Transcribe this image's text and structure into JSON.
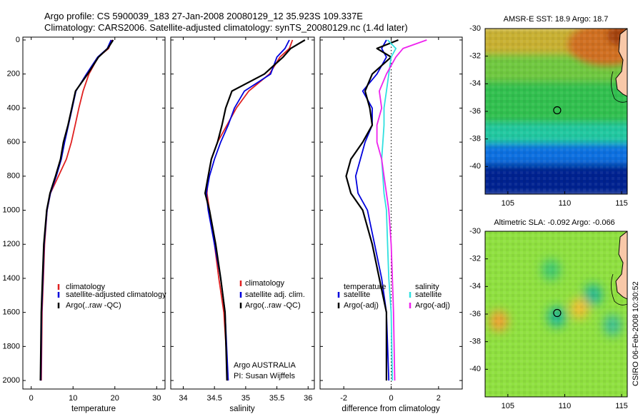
{
  "title_line1": "Argo profile: CS 5900039_183 27-Jan-2008 20080129_12 35.923S 109.337E",
  "title_line2": "Climatology: CARS2006. Satellite-adjusted climatology: synTS_20080129.nc (1.4d later)",
  "colors": {
    "climatology": "#e02020",
    "satellite": "#0000dd",
    "argo": "#000000",
    "sal_satellite": "#30e0e0",
    "sal_argo": "#ee22ee"
  },
  "chart_data": [
    {
      "type": "line",
      "xlabel": "temperature",
      "xlim": [
        -2,
        32
      ],
      "ylim": [
        0,
        2050
      ],
      "y_inverted": true,
      "xticks": [
        0,
        10,
        20,
        30
      ],
      "yticks": [
        0,
        200,
        400,
        600,
        800,
        1000,
        1200,
        1400,
        1600,
        1800,
        2000
      ],
      "legend": [
        "climatology",
        "satellite-adjusted climatology",
        "Argo(..raw -QC)"
      ],
      "legend_position": "lower-right",
      "series": [
        {
          "name": "climatology",
          "role": "climatology",
          "x": [
            19.3,
            18.5,
            16,
            13.8,
            12.4,
            11.4,
            10.5,
            9.6,
            8.4,
            6.5,
            4.6,
            3.8,
            3.2,
            2.9,
            2.6,
            2.4
          ],
          "y": [
            0,
            50,
            100,
            200,
            300,
            400,
            500,
            600,
            700,
            800,
            900,
            1000,
            1200,
            1400,
            1600,
            2000
          ]
        },
        {
          "name": "satellite-adjusted climatology",
          "role": "satellite",
          "x": [
            19.1,
            18.2,
            15.9,
            13.2,
            10.7,
            9.8,
            8.9,
            8,
            7.2,
            6,
            4.6,
            3.8,
            3.1,
            2.8,
            2.5,
            2.3
          ],
          "y": [
            0,
            50,
            100,
            200,
            300,
            400,
            500,
            600,
            700,
            800,
            900,
            1000,
            1200,
            1400,
            1600,
            2000
          ]
        },
        {
          "name": "Argo(..raw -QC)",
          "role": "argo",
          "x": [
            19.6,
            18.3,
            16.1,
            13.5,
            10.6,
            9.7,
            8.8,
            7.7,
            7,
            5.8,
            4.5,
            3.7,
            3,
            2.7,
            2.4,
            2.2
          ],
          "y": [
            0,
            50,
            100,
            200,
            300,
            400,
            500,
            600,
            700,
            800,
            900,
            1000,
            1200,
            1400,
            1600,
            2000
          ]
        }
      ]
    },
    {
      "type": "line",
      "xlabel": "salinity",
      "xlim": [
        33.8,
        36.1
      ],
      "ylim": [
        0,
        2050
      ],
      "y_inverted": true,
      "xticks": [
        34,
        34.5,
        35,
        35.5,
        36
      ],
      "yticks": [
        0,
        200,
        400,
        600,
        800,
        1000,
        1200,
        1400,
        1600,
        1800,
        2000
      ],
      "legend": [
        "climatology",
        "satellite adj. clim.",
        "Argo(..raw -QC)"
      ],
      "legend_position": "lower-right",
      "annotations": [
        "Argo AUSTRALIA",
        "PI: Susan Wijffels"
      ],
      "series": [
        {
          "name": "climatology",
          "role": "climatology",
          "x": [
            35.75,
            35.7,
            35.55,
            35.38,
            35.05,
            34.85,
            34.7,
            34.55,
            34.45,
            34.4,
            34.38,
            34.42,
            34.5,
            34.57,
            34.65,
            34.72
          ],
          "y": [
            0,
            50,
            100,
            200,
            300,
            400,
            500,
            600,
            700,
            800,
            900,
            1000,
            1200,
            1400,
            1600,
            2000
          ]
        },
        {
          "name": "satellite adj. clim.",
          "role": "satellite",
          "x": [
            35.7,
            35.63,
            35.5,
            35.4,
            34.98,
            34.82,
            34.72,
            34.6,
            34.5,
            34.42,
            34.37,
            34.4,
            34.5,
            34.6,
            34.67,
            34.72
          ],
          "y": [
            0,
            50,
            100,
            200,
            300,
            400,
            500,
            600,
            700,
            800,
            900,
            1000,
            1200,
            1400,
            1600,
            2000
          ]
        },
        {
          "name": "Argo(..raw -QC)",
          "role": "argo",
          "x": [
            35.95,
            35.72,
            35.6,
            35.3,
            34.78,
            34.68,
            34.62,
            34.55,
            34.45,
            34.4,
            34.35,
            34.42,
            34.52,
            34.6,
            34.67,
            34.7
          ],
          "y": [
            0,
            50,
            100,
            200,
            300,
            400,
            500,
            600,
            700,
            800,
            900,
            1000,
            1200,
            1400,
            1600,
            2000
          ]
        }
      ]
    },
    {
      "type": "line",
      "xlabel": "difference from climatology",
      "xlim": [
        -3,
        3
      ],
      "ylim": [
        0,
        2050
      ],
      "y_inverted": true,
      "xticks": [
        -2,
        0,
        2
      ],
      "yticks": [
        0,
        200,
        400,
        600,
        800,
        1000,
        1200,
        1400,
        1600,
        1800,
        2000
      ],
      "legend_left_title": "temperature",
      "legend_right_title": "salinity",
      "legend": [
        "satellite",
        "Argo(-adj)",
        "satellite",
        "Argo(-adj)"
      ],
      "legend_position": "lower-center",
      "series": [
        {
          "name": "satellite",
          "role": "satellite",
          "x": [
            -0.2,
            -0.4,
            -0.2,
            -0.6,
            -1.2,
            -0.8,
            -0.8,
            -1.1,
            -1.3,
            -1.5,
            -1.4,
            -1,
            -0.7,
            -0.4,
            -0.2,
            -0.1
          ],
          "y": [
            0,
            50,
            100,
            200,
            300,
            400,
            500,
            600,
            700,
            800,
            900,
            1000,
            1200,
            1400,
            1600,
            2000
          ]
        },
        {
          "name": "Argo(-adj)",
          "role": "argo",
          "x": [
            0.3,
            -0.6,
            0,
            -0.8,
            -1.1,
            -0.9,
            -0.8,
            -1.2,
            -1.7,
            -1.9,
            -1.7,
            -1.2,
            -0.8,
            -0.5,
            -0.2,
            -0.2
          ],
          "y": [
            0,
            50,
            100,
            200,
            300,
            400,
            500,
            600,
            700,
            800,
            900,
            1000,
            1200,
            1400,
            1600,
            2000
          ]
        },
        {
          "name": "satellite",
          "role": "sal_satellite",
          "x": [
            -0.15,
            0.2,
            0,
            -0.1,
            -0.2,
            -0.3,
            -0.3,
            -0.35,
            -0.4,
            -0.35,
            -0.3,
            -0.2,
            -0.15,
            -0.1,
            0,
            0.05
          ],
          "y": [
            0,
            50,
            100,
            200,
            300,
            400,
            500,
            600,
            700,
            800,
            900,
            1000,
            1200,
            1400,
            1600,
            2000
          ]
        },
        {
          "name": "Argo(-adj)",
          "role": "sal_argo",
          "x": [
            1.5,
            0.5,
            0.2,
            -0.2,
            -0.5,
            -0.4,
            -0.6,
            -0.6,
            -0.4,
            -0.3,
            -0.2,
            -0.1,
            0,
            0.05,
            0.1,
            0.15
          ],
          "y": [
            0,
            50,
            100,
            200,
            300,
            400,
            500,
            600,
            700,
            800,
            900,
            1000,
            1200,
            1400,
            1600,
            2000
          ]
        }
      ]
    },
    {
      "type": "heatmap",
      "title": "AMSR-E SST: 18.9 Argo: 18.7",
      "xlim": [
        103,
        115.5
      ],
      "ylim": [
        -42,
        -30
      ],
      "xticks": [
        105,
        110,
        115
      ],
      "yticks": [
        -30,
        -32,
        -34,
        -36,
        -38,
        -40
      ],
      "marker": {
        "lon": 109.337,
        "lat": -35.923
      },
      "color_bands": [
        {
          "lat_from": -30,
          "lat_to": -32,
          "color": "#c8b030"
        },
        {
          "lat_from": -32,
          "lat_to": -34,
          "color": "#70c840"
        },
        {
          "lat_from": -34,
          "lat_to": -37,
          "color": "#30c050"
        },
        {
          "lat_from": -37,
          "lat_to": -38.5,
          "color": "#20c8a0"
        },
        {
          "lat_from": -38.5,
          "lat_to": -40,
          "color": "#1070e0"
        },
        {
          "lat_from": -40,
          "lat_to": -42,
          "color": "#002090"
        }
      ]
    },
    {
      "type": "heatmap",
      "title": "Altimetric SLA: -0.092 Argo: -0.066",
      "xlim": [
        103,
        115.5
      ],
      "ylim": [
        -42,
        -30
      ],
      "xticks": [
        105,
        110,
        115
      ],
      "yticks": [
        -30,
        -32,
        -34,
        -36,
        -38,
        -40
      ],
      "marker": {
        "lon": 109.337,
        "lat": -35.923
      },
      "background_color": "#8fe040",
      "blobs": [
        {
          "lon": 109.3,
          "lat": -36.2,
          "color": "#20b890"
        },
        {
          "lon": 112.5,
          "lat": -34.6,
          "color": "#20b890"
        },
        {
          "lon": 108.8,
          "lat": -32.8,
          "color": "#40c870"
        },
        {
          "lon": 104.2,
          "lat": -36.5,
          "color": "#f0a030"
        },
        {
          "lon": 111.3,
          "lat": -35.6,
          "color": "#f0c030"
        },
        {
          "lon": 114.2,
          "lat": -36.8,
          "color": "#40c090"
        }
      ]
    }
  ],
  "side_text": "CSIRO 06-Feb-2008 10:30:52"
}
